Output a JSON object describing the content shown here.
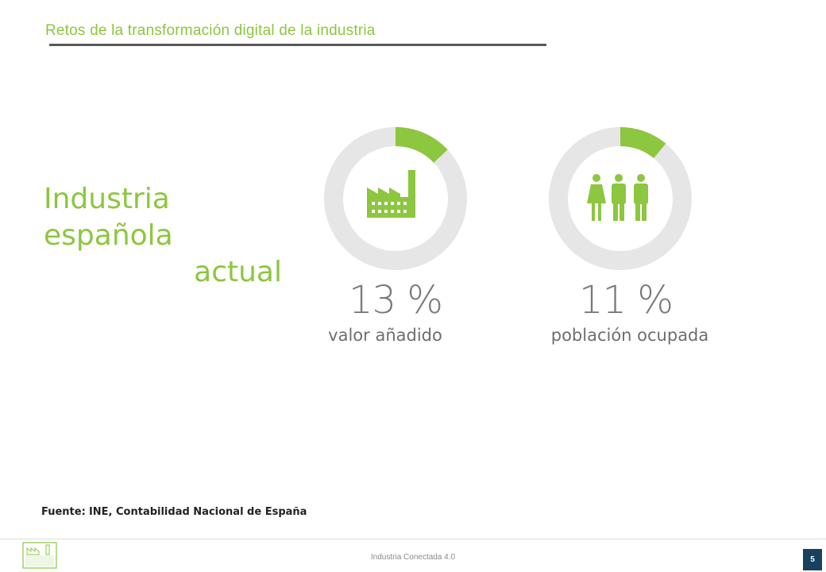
{
  "slide": {
    "title": "Retos de la transformación digital de la industria",
    "headline_line1": "Industria española",
    "headline_line2": "actual",
    "source_label": "Fuente:",
    "source_text": "INE, Contabilidad Nacional de España"
  },
  "footer": {
    "text": "Industria Conectada 4.0",
    "page_number": "5",
    "logo_text_1": "INDUSTRIA",
    "logo_text_2": "CONECTADA",
    "logo_text_3": "4.0"
  },
  "colors": {
    "accent": "#8dc63f",
    "ring_track": "#e6e6e6",
    "rule": "#595959",
    "badge": "#17415e",
    "percent_text": "#7a7a7a"
  },
  "chart_data": [
    {
      "type": "pie",
      "variant": "donut",
      "icon": "factory-icon",
      "value_percent": 13,
      "value_text": "13 %",
      "label": "valor añadido"
    },
    {
      "type": "pie",
      "variant": "donut",
      "icon": "people-icon",
      "value_percent": 11,
      "value_text": "11 %",
      "label": "población ocupada"
    }
  ]
}
